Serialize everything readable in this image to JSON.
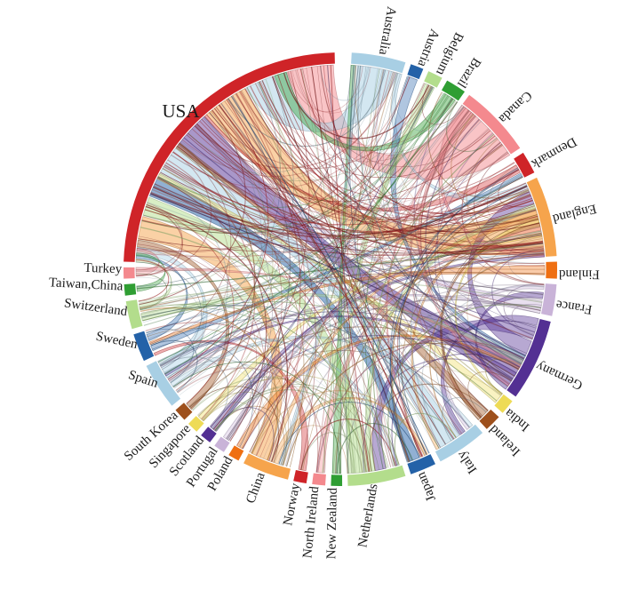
{
  "figure": {
    "background": "#ffffff"
  },
  "chart_data": {
    "type": "chord",
    "title": "",
    "legend": "none",
    "countries": [
      {
        "name": "Australia",
        "color": "#a8cfe4",
        "arc_start_deg": 3.0,
        "arc_end_deg": 17.5
      },
      {
        "name": "Austria",
        "color": "#2462a8",
        "arc_start_deg": 19.0,
        "arc_end_deg": 22.5
      },
      {
        "name": "Belgium",
        "color": "#b3dd8c",
        "arc_start_deg": 24.0,
        "arc_end_deg": 28.0
      },
      {
        "name": "Brazil",
        "color": "#2f9e33",
        "arc_start_deg": 29.5,
        "arc_end_deg": 35.0
      },
      {
        "name": "Canada",
        "color": "#f4898e",
        "arc_start_deg": 36.5,
        "arc_end_deg": 56.0
      },
      {
        "name": "Denmark",
        "color": "#cf2428",
        "arc_start_deg": 57.5,
        "arc_end_deg": 63.5
      },
      {
        "name": "England",
        "color": "#f6a44c",
        "arc_start_deg": 65.0,
        "arc_end_deg": 86.5
      },
      {
        "name": "Finland",
        "color": "#ef6f12",
        "arc_start_deg": 88.0,
        "arc_end_deg": 92.5
      },
      {
        "name": "France",
        "color": "#c9b3d8",
        "arc_start_deg": 94.0,
        "arc_end_deg": 102.5
      },
      {
        "name": "Germany",
        "color": "#533093",
        "arc_start_deg": 104.0,
        "arc_end_deg": 126.0
      },
      {
        "name": "India",
        "color": "#eedb56",
        "arc_start_deg": 127.5,
        "arc_end_deg": 131.5
      },
      {
        "name": "Ireland",
        "color": "#9e501c",
        "arc_start_deg": 133.0,
        "arc_end_deg": 137.5
      },
      {
        "name": "Italy",
        "color": "#a8cfe4",
        "arc_start_deg": 139.0,
        "arc_end_deg": 152.5
      },
      {
        "name": "Japan",
        "color": "#2462a8",
        "arc_start_deg": 154.0,
        "arc_end_deg": 161.0
      },
      {
        "name": "Netherlands",
        "color": "#b3dd8c",
        "arc_start_deg": 162.5,
        "arc_end_deg": 178.0
      },
      {
        "name": "New Zealand",
        "color": "#2f9e33",
        "arc_start_deg": 179.5,
        "arc_end_deg": 182.5
      },
      {
        "name": "North Ireland",
        "color": "#f4898e",
        "arc_start_deg": 184.0,
        "arc_end_deg": 187.5
      },
      {
        "name": "Norway",
        "color": "#cf2428",
        "arc_start_deg": 189.0,
        "arc_end_deg": 192.5
      },
      {
        "name": "China",
        "color": "#f6a44c",
        "arc_start_deg": 194.0,
        "arc_end_deg": 206.5
      },
      {
        "name": "Poland",
        "color": "#ef6f12",
        "arc_start_deg": 208.0,
        "arc_end_deg": 211.0
      },
      {
        "name": "Portugal",
        "color": "#c9b3d8",
        "arc_start_deg": 212.5,
        "arc_end_deg": 215.5
      },
      {
        "name": "Scotland",
        "color": "#533093",
        "arc_start_deg": 217.0,
        "arc_end_deg": 220.0
      },
      {
        "name": "Singapore",
        "color": "#eedb56",
        "arc_start_deg": 221.5,
        "arc_end_deg": 224.5
      },
      {
        "name": "South Korea",
        "color": "#9e501c",
        "arc_start_deg": 226.0,
        "arc_end_deg": 229.5
      },
      {
        "name": "Spain",
        "color": "#a8cfe4",
        "arc_start_deg": 231.0,
        "arc_end_deg": 243.5
      },
      {
        "name": "Sweden",
        "color": "#2462a8",
        "arc_start_deg": 245.0,
        "arc_end_deg": 252.5
      },
      {
        "name": "Switzerland",
        "color": "#b3dd8c",
        "arc_start_deg": 254.0,
        "arc_end_deg": 261.5
      },
      {
        "name": "Taiwan,China",
        "color": "#2f9e33",
        "arc_start_deg": 263.0,
        "arc_end_deg": 266.0
      },
      {
        "name": "Turkey",
        "color": "#f4898e",
        "arc_start_deg": 267.5,
        "arc_end_deg": 270.5
      },
      {
        "name": "USA",
        "color": "#cf2428",
        "arc_start_deg": 272.0,
        "arc_end_deg": 358.5
      }
    ],
    "links": [
      {
        "source": "Canada",
        "target": "USA",
        "weight": "major",
        "s": [
          0.05,
          1.0
        ],
        "t": [
          0.845,
          0.995
        ]
      },
      {
        "source": "Australia",
        "target": "USA",
        "weight": "major",
        "s": [
          0.15,
          0.9
        ],
        "t": [
          0.7,
          0.84
        ]
      },
      {
        "source": "England",
        "target": "USA",
        "weight": "major",
        "s": [
          0.35,
          0.95
        ],
        "t": [
          0.545,
          0.695
        ]
      },
      {
        "source": "Germany",
        "target": "USA",
        "weight": "major",
        "s": [
          0.55,
          0.95
        ],
        "t": [
          0.41,
          0.535
        ]
      },
      {
        "source": "Italy",
        "target": "USA",
        "weight": "major",
        "s": [
          0.4,
          0.9
        ],
        "t": [
          0.295,
          0.405
        ]
      },
      {
        "source": "Japan",
        "target": "USA",
        "weight": "major",
        "s": [
          0.45,
          0.95
        ],
        "t": [
          0.22,
          0.29
        ]
      },
      {
        "source": "Netherlands",
        "target": "USA",
        "weight": "major",
        "s": [
          0.6,
          0.92
        ],
        "t": [
          0.155,
          0.215
        ]
      },
      {
        "source": "China",
        "target": "USA",
        "weight": "major",
        "s": [
          0.55,
          0.95
        ],
        "t": [
          0.075,
          0.15
        ]
      },
      {
        "source": "France",
        "target": "USA",
        "weight": "medium",
        "s": [
          0.6,
          0.88
        ],
        "t": [
          0.5,
          0.53
        ]
      },
      {
        "source": "South Korea",
        "target": "USA",
        "weight": "medium",
        "s": [
          0.2,
          0.8
        ],
        "t": [
          0.05,
          0.072
        ]
      },
      {
        "source": "Spain",
        "target": "USA",
        "weight": "medium",
        "s": [
          0.55,
          0.9
        ],
        "t": [
          0.025,
          0.048
        ]
      },
      {
        "source": "Sweden",
        "target": "USA",
        "weight": "thin",
        "s": [
          0.6,
          0.85
        ],
        "t": [
          0.012,
          0.023
        ]
      },
      {
        "source": "Switzerland",
        "target": "USA",
        "weight": "thin",
        "s": [
          0.6,
          0.8
        ],
        "t": [
          0.0,
          0.01
        ]
      },
      {
        "source": "Denmark",
        "target": "USA",
        "weight": "thin",
        "s": [
          0.3,
          0.7
        ],
        "t": [
          0.536,
          0.545
        ]
      },
      {
        "source": "India",
        "target": "USA",
        "weight": "thin",
        "s": [
          0.2,
          0.8
        ],
        "t": [
          0.28,
          0.3
        ]
      },
      {
        "source": "Brazil",
        "target": "USA",
        "weight": "medium",
        "s": [
          0.2,
          0.85
        ],
        "t": [
          0.8,
          0.84
        ]
      },
      {
        "source": "Ireland",
        "target": "USA",
        "weight": "medium",
        "s": [
          0.15,
          0.85
        ],
        "t": [
          0.4,
          0.418
        ]
      },
      {
        "source": "Turkey",
        "target": "USA",
        "weight": "thin",
        "s": [
          0.25,
          0.75
        ],
        "t": [
          0.035,
          0.045
        ]
      },
      {
        "source": "Taiwan,China",
        "target": "USA",
        "weight": "thin",
        "s": [
          0.25,
          0.75
        ],
        "t": [
          0.02,
          0.03
        ]
      },
      {
        "source": "Canada",
        "target": "England",
        "weight": "medium",
        "s": [
          0.0,
          0.12
        ],
        "t": [
          0.9,
          1.0
        ]
      },
      {
        "source": "Australia",
        "target": "England",
        "weight": "medium",
        "s": [
          0.9,
          1.0
        ],
        "t": [
          0.0,
          0.12
        ]
      },
      {
        "source": "Germany",
        "target": "England",
        "weight": "medium",
        "s": [
          0.3,
          0.5
        ],
        "t": [
          0.13,
          0.3
        ]
      },
      {
        "source": "Germany",
        "target": "Netherlands",
        "weight": "medium",
        "s": [
          0.1,
          0.28
        ],
        "t": [
          0.3,
          0.5
        ]
      },
      {
        "source": "Germany",
        "target": "Italy",
        "weight": "medium",
        "s": [
          0.0,
          0.09
        ],
        "t": [
          0.25,
          0.38
        ]
      },
      {
        "source": "Germany",
        "target": "France",
        "weight": "medium",
        "s": [
          0.95,
          1.0
        ],
        "t": [
          0.3,
          0.5
        ]
      },
      {
        "source": "Austria",
        "target": "Germany",
        "weight": "thin",
        "s": [
          0.1,
          0.9
        ],
        "t": [
          0.5,
          0.55
        ]
      },
      {
        "source": "Netherlands",
        "target": "England",
        "weight": "medium",
        "s": [
          0.5,
          0.6
        ],
        "t": [
          0.3,
          0.38
        ]
      },
      {
        "source": "England",
        "target": "Italy",
        "weight": "thin",
        "s": [
          0.38,
          0.44
        ],
        "t": [
          0.9,
          0.96
        ]
      },
      {
        "source": "Scotland",
        "target": "England",
        "weight": "thin",
        "s": [
          0.2,
          0.8
        ],
        "t": [
          0.96,
          1.0
        ]
      },
      {
        "source": "Belgium",
        "target": "Netherlands",
        "weight": "medium",
        "s": [
          0.15,
          0.85
        ],
        "t": [
          0.93,
          1.0
        ]
      },
      {
        "source": "Spain",
        "target": "Italy",
        "weight": "thin",
        "s": [
          0.3,
          0.42
        ],
        "t": [
          0.05,
          0.12
        ]
      },
      {
        "source": "France",
        "target": "Italy",
        "weight": "thin",
        "s": [
          0.05,
          0.2
        ],
        "t": [
          0.13,
          0.2
        ]
      },
      {
        "source": "China",
        "target": "Japan",
        "weight": "thin",
        "s": [
          0.3,
          0.45
        ],
        "t": [
          0.1,
          0.25
        ]
      },
      {
        "source": "France",
        "target": "Spain",
        "weight": "thin",
        "s": [
          0.9,
          1.0
        ],
        "t": [
          0.45,
          0.52
        ]
      },
      {
        "source": "Sweden",
        "target": "Denmark",
        "weight": "thin",
        "s": [
          0.2,
          0.4
        ],
        "t": [
          0.75,
          0.95
        ]
      },
      {
        "source": "Finland",
        "target": "Sweden",
        "weight": "thin",
        "s": [
          0.2,
          0.8
        ],
        "t": [
          0.45,
          0.55
        ]
      },
      {
        "source": "Norway",
        "target": "Sweden",
        "weight": "thin",
        "s": [
          0.2,
          0.8
        ],
        "t": [
          0.0,
          0.1
        ]
      },
      {
        "source": "New Zealand",
        "target": "Australia",
        "weight": "thin",
        "s": [
          0.1,
          0.9
        ],
        "t": [
          0.0,
          0.08
        ]
      },
      {
        "source": "Canada",
        "target": "Germany",
        "weight": "thin",
        "s": [
          0.12,
          0.2
        ],
        "t": [
          0.91,
          0.95
        ]
      },
      {
        "source": "China",
        "target": "England",
        "weight": "thin",
        "s": [
          0.46,
          0.55
        ],
        "t": [
          0.44,
          0.5
        ]
      },
      {
        "source": "India",
        "target": "England",
        "weight": "thin",
        "s": [
          0.0,
          0.15
        ],
        "t": [
          0.5,
          0.55
        ]
      },
      {
        "source": "Ireland",
        "target": "England",
        "weight": "thin",
        "s": [
          0.75,
          1.0
        ],
        "t": [
          0.55,
          0.6
        ]
      },
      {
        "source": "Switzerland",
        "target": "Germany",
        "weight": "thin",
        "s": [
          0.2,
          0.45
        ],
        "t": [
          0.56,
          0.62
        ]
      },
      {
        "source": "Turkey",
        "target": "Germany",
        "weight": "thin",
        "s": [
          0.75,
          1.0
        ],
        "t": [
          0.63,
          0.66
        ]
      },
      {
        "source": "North Ireland",
        "target": "England",
        "weight": "thin",
        "s": [
          0.2,
          0.8
        ],
        "t": [
          0.61,
          0.65
        ]
      },
      {
        "source": "Portugal",
        "target": "England",
        "weight": "thin",
        "s": [
          0.2,
          0.8
        ],
        "t": [
          0.66,
          0.69
        ]
      },
      {
        "source": "Poland",
        "target": "Germany",
        "weight": "thin",
        "s": [
          0.2,
          0.8
        ],
        "t": [
          0.67,
          0.7
        ]
      },
      {
        "source": "Singapore",
        "target": "England",
        "weight": "thin",
        "s": [
          0.2,
          0.8
        ],
        "t": [
          0.7,
          0.73
        ]
      },
      {
        "source": "Germany",
        "target": "Spain",
        "weight": "thin",
        "s": [
          0.75,
          0.8
        ],
        "t": [
          0.6,
          0.66
        ]
      },
      {
        "source": "Canada",
        "target": "Japan",
        "weight": "thin",
        "s": [
          0.2,
          0.26
        ],
        "t": [
          0.3,
          0.38
        ]
      },
      {
        "source": "Australia",
        "target": "China",
        "weight": "thin",
        "s": [
          0.08,
          0.14
        ],
        "t": [
          0.2,
          0.28
        ]
      },
      {
        "source": "Spain",
        "target": "Netherlands",
        "weight": "thin",
        "s": [
          0.92,
          0.98
        ],
        "t": [
          0.05,
          0.12
        ]
      }
    ]
  }
}
